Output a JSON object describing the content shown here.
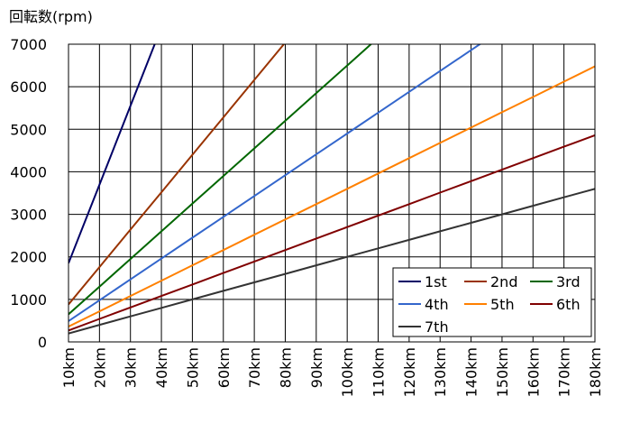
{
  "chart_data": {
    "type": "line",
    "ylabel": "回転数(rpm)",
    "xlabel": "",
    "x": [
      10,
      20,
      30,
      40,
      50,
      60,
      70,
      80,
      90,
      100,
      110,
      120,
      130,
      140,
      150,
      160,
      170,
      180
    ],
    "x_tick_labels": [
      "10km",
      "20km",
      "30km",
      "40km",
      "50km",
      "60km",
      "70km",
      "80km",
      "90km",
      "100km",
      "110km",
      "120km",
      "130km",
      "140km",
      "150km",
      "160km",
      "170km",
      "180km"
    ],
    "y_tick_labels": [
      "0",
      "1000",
      "2000",
      "3000",
      "4000",
      "5000",
      "6000",
      "7000"
    ],
    "xlim": [
      10,
      180
    ],
    "ylim": [
      0,
      7000
    ],
    "grid": true,
    "legend_position": "bottom-right",
    "legend_columns": 3,
    "series": [
      {
        "name": "1st",
        "color": "#000066",
        "x": [
          10,
          20,
          30,
          40,
          50
        ],
        "y": [
          1850,
          3700,
          5550,
          7400,
          9250
        ]
      },
      {
        "name": "2nd",
        "color": "#993300",
        "x": [
          10,
          20,
          30,
          40,
          50,
          60,
          70,
          80,
          90
        ],
        "y": [
          880,
          1760,
          2640,
          3520,
          4400,
          5280,
          6160,
          7040,
          7920
        ]
      },
      {
        "name": "3rd",
        "color": "#006600",
        "x": [
          10,
          20,
          30,
          40,
          50,
          60,
          70,
          80,
          90,
          100,
          110,
          120
        ],
        "y": [
          650,
          1300,
          1950,
          2600,
          3250,
          3900,
          4550,
          5200,
          5850,
          6500,
          7150,
          7800
        ]
      },
      {
        "name": "4th",
        "color": "#3366CC",
        "x": [
          10,
          20,
          30,
          40,
          50,
          60,
          70,
          80,
          90,
          100,
          110,
          120,
          130,
          140,
          150
        ],
        "y": [
          490,
          980,
          1470,
          1960,
          2450,
          2940,
          3430,
          3920,
          4410,
          4900,
          5390,
          5880,
          6370,
          6860,
          7350
        ]
      },
      {
        "name": "5th",
        "color": "#FF8000",
        "x": [
          10,
          20,
          30,
          40,
          50,
          60,
          70,
          80,
          90,
          100,
          110,
          120,
          130,
          140,
          150,
          160,
          170,
          180
        ],
        "y": [
          360,
          720,
          1080,
          1440,
          1800,
          2160,
          2520,
          2880,
          3240,
          3600,
          3960,
          4320,
          4680,
          5040,
          5400,
          5760,
          6120,
          6480
        ]
      },
      {
        "name": "6th",
        "color": "#800000",
        "x": [
          10,
          20,
          30,
          40,
          50,
          60,
          70,
          80,
          90,
          100,
          110,
          120,
          130,
          140,
          150,
          160,
          170,
          180
        ],
        "y": [
          270,
          540,
          810,
          1080,
          1350,
          1620,
          1890,
          2160,
          2430,
          2700,
          2970,
          3240,
          3510,
          3780,
          4050,
          4320,
          4590,
          4860
        ]
      },
      {
        "name": "7th",
        "color": "#333333",
        "x": [
          10,
          20,
          30,
          40,
          50,
          60,
          70,
          80,
          90,
          100,
          110,
          120,
          130,
          140,
          150,
          160,
          170,
          180
        ],
        "y": [
          200,
          400,
          600,
          800,
          1000,
          1200,
          1400,
          1600,
          1800,
          2000,
          2200,
          2400,
          2600,
          2800,
          3000,
          3200,
          3400,
          3600
        ]
      }
    ]
  }
}
